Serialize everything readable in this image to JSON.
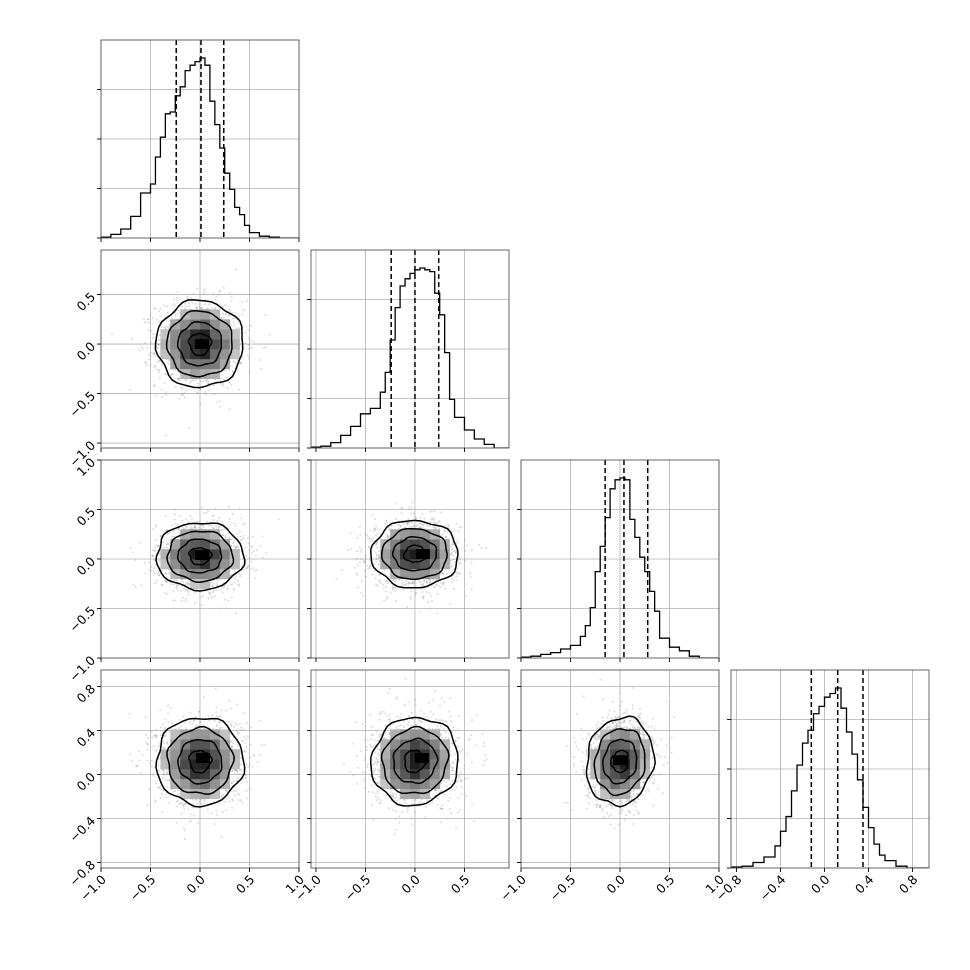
{
  "chart_data": {
    "type": "corner",
    "description_note": "Triangular pair plot of 4 parameters: 1D histograms on the diagonal with dashed quantile lines; 2D density panels (grey scatter points, greyscale binned density, black contours) below the diagonal.",
    "grid": true,
    "parameters": [
      {
        "index": 0,
        "range": [
          -1.0,
          1.0
        ],
        "ticks": [
          -1.0,
          -0.5,
          0.0,
          0.5,
          1.0
        ],
        "tick_labels": [
          "−1.0",
          "−0.5",
          "0.0",
          "0.5",
          "1.0"
        ],
        "quantiles": [
          -0.24,
          0.01,
          0.24
        ],
        "hist_bins": [
          -1.0,
          -0.9,
          -0.8,
          -0.7,
          -0.6,
          -0.5,
          -0.45,
          -0.4,
          -0.35,
          -0.3,
          -0.25,
          -0.2,
          -0.15,
          -0.1,
          -0.05,
          0.0,
          0.05,
          0.1,
          0.15,
          0.2,
          0.25,
          0.3,
          0.35,
          0.4,
          0.45,
          0.5,
          0.6,
          0.7,
          0.8,
          0.9,
          1.0
        ],
        "hist_counts": [
          0.005,
          0.02,
          0.05,
          0.12,
          0.25,
          0.3,
          0.45,
          0.56,
          0.69,
          0.7,
          0.79,
          0.84,
          0.93,
          0.96,
          0.98,
          1.0,
          0.96,
          0.76,
          0.63,
          0.5,
          0.36,
          0.27,
          0.17,
          0.13,
          0.07,
          0.03,
          0.01,
          0.005,
          0.0,
          0.0
        ]
      },
      {
        "index": 1,
        "range": [
          -1.05,
          0.95
        ],
        "ticks": [
          -1.0,
          -0.5,
          0.0,
          0.5
        ],
        "tick_labels": [
          "−1.0",
          "−0.5",
          "0.0",
          "0.5"
        ],
        "quantiles": [
          -0.24,
          0.0,
          0.24
        ],
        "hist_bins": [
          -1.05,
          -0.95,
          -0.85,
          -0.75,
          -0.65,
          -0.55,
          -0.45,
          -0.35,
          -0.3,
          -0.25,
          -0.2,
          -0.15,
          -0.1,
          -0.05,
          0.0,
          0.05,
          0.1,
          0.15,
          0.2,
          0.25,
          0.3,
          0.35,
          0.4,
          0.5,
          0.6,
          0.7,
          0.8,
          0.95
        ],
        "hist_counts": [
          0.005,
          0.01,
          0.03,
          0.07,
          0.12,
          0.19,
          0.22,
          0.31,
          0.42,
          0.6,
          0.78,
          0.9,
          0.94,
          0.97,
          0.99,
          1.0,
          0.99,
          0.98,
          0.86,
          0.74,
          0.53,
          0.27,
          0.17,
          0.1,
          0.05,
          0.02,
          0.0
        ]
      },
      {
        "index": 2,
        "range": [
          -1.0,
          1.0
        ],
        "ticks": [
          -1.0,
          -0.5,
          0.0,
          0.5,
          1.0
        ],
        "tick_labels": [
          "−1.0",
          "−0.5",
          "0.0",
          "0.5",
          "1.0"
        ],
        "quantiles": [
          -0.15,
          0.04,
          0.28
        ],
        "hist_bins": [
          -1.0,
          -0.9,
          -0.8,
          -0.7,
          -0.6,
          -0.5,
          -0.4,
          -0.35,
          -0.3,
          -0.25,
          -0.2,
          -0.15,
          -0.1,
          -0.05,
          0.0,
          0.05,
          0.1,
          0.15,
          0.2,
          0.25,
          0.3,
          0.35,
          0.4,
          0.5,
          0.6,
          0.7,
          0.8,
          1.0
        ],
        "hist_counts": [
          0.005,
          0.01,
          0.02,
          0.03,
          0.05,
          0.07,
          0.12,
          0.18,
          0.28,
          0.48,
          0.62,
          0.78,
          0.94,
          0.99,
          1.0,
          0.99,
          0.77,
          0.67,
          0.56,
          0.48,
          0.37,
          0.26,
          0.11,
          0.06,
          0.04,
          0.01,
          0.0
        ]
      },
      {
        "index": 3,
        "range": [
          -0.85,
          0.95
        ],
        "ticks": [
          -0.8,
          -0.4,
          0.0,
          0.4,
          0.8
        ],
        "tick_labels": [
          "−0.8",
          "−0.4",
          "0.0",
          "0.4",
          "0.8"
        ],
        "quantiles": [
          -0.12,
          0.12,
          0.35
        ],
        "hist_bins": [
          -0.85,
          -0.75,
          -0.65,
          -0.55,
          -0.45,
          -0.4,
          -0.35,
          -0.3,
          -0.25,
          -0.2,
          -0.15,
          -0.1,
          -0.05,
          0.0,
          0.05,
          0.1,
          0.15,
          0.2,
          0.25,
          0.3,
          0.35,
          0.4,
          0.45,
          0.5,
          0.55,
          0.65,
          0.75,
          0.95
        ],
        "hist_counts": [
          0.005,
          0.01,
          0.03,
          0.06,
          0.12,
          0.2,
          0.28,
          0.42,
          0.56,
          0.68,
          0.75,
          0.84,
          0.88,
          0.93,
          0.95,
          0.98,
          0.87,
          0.74,
          0.62,
          0.48,
          0.33,
          0.22,
          0.13,
          0.07,
          0.04,
          0.01,
          0.0
        ]
      }
    ],
    "pairs": [
      {
        "x": 0,
        "y": 1,
        "center": [
          0.0,
          0.0
        ],
        "sigma": [
          0.22,
          0.22
        ],
        "corr": 0.0,
        "peak": [
          0.02,
          0.0
        ]
      },
      {
        "x": 0,
        "y": 2,
        "center": [
          0.0,
          0.03
        ],
        "sigma": [
          0.22,
          0.17
        ],
        "corr": 0.0,
        "peak": [
          0.02,
          0.04
        ]
      },
      {
        "x": 1,
        "y": 2,
        "center": [
          0.0,
          0.05
        ],
        "sigma": [
          0.22,
          0.17
        ],
        "corr": 0.0,
        "peak": [
          0.08,
          0.05
        ]
      },
      {
        "x": 0,
        "y": 3,
        "center": [
          0.0,
          0.12
        ],
        "sigma": [
          0.22,
          0.2
        ],
        "corr": 0.0,
        "peak": [
          0.03,
          0.15
        ]
      },
      {
        "x": 1,
        "y": 3,
        "center": [
          0.0,
          0.12
        ],
        "sigma": [
          0.22,
          0.2
        ],
        "corr": 0.05,
        "peak": [
          0.07,
          0.15
        ]
      },
      {
        "x": 2,
        "y": 3,
        "center": [
          0.0,
          0.12
        ],
        "sigma": [
          0.17,
          0.2
        ],
        "corr": 0.1,
        "peak": [
          0.0,
          0.13
        ]
      }
    ],
    "contour_levels_sigma": [
      0.5,
      1.0,
      1.5,
      2.0
    ],
    "colors": {
      "hist_line": "#000000",
      "quantile_line": "#000000",
      "contour": "#000000",
      "scatter": "#9a9a9a",
      "density_dark": "#000000",
      "grid": "#b0b0b0",
      "frame": "#555555"
    }
  }
}
